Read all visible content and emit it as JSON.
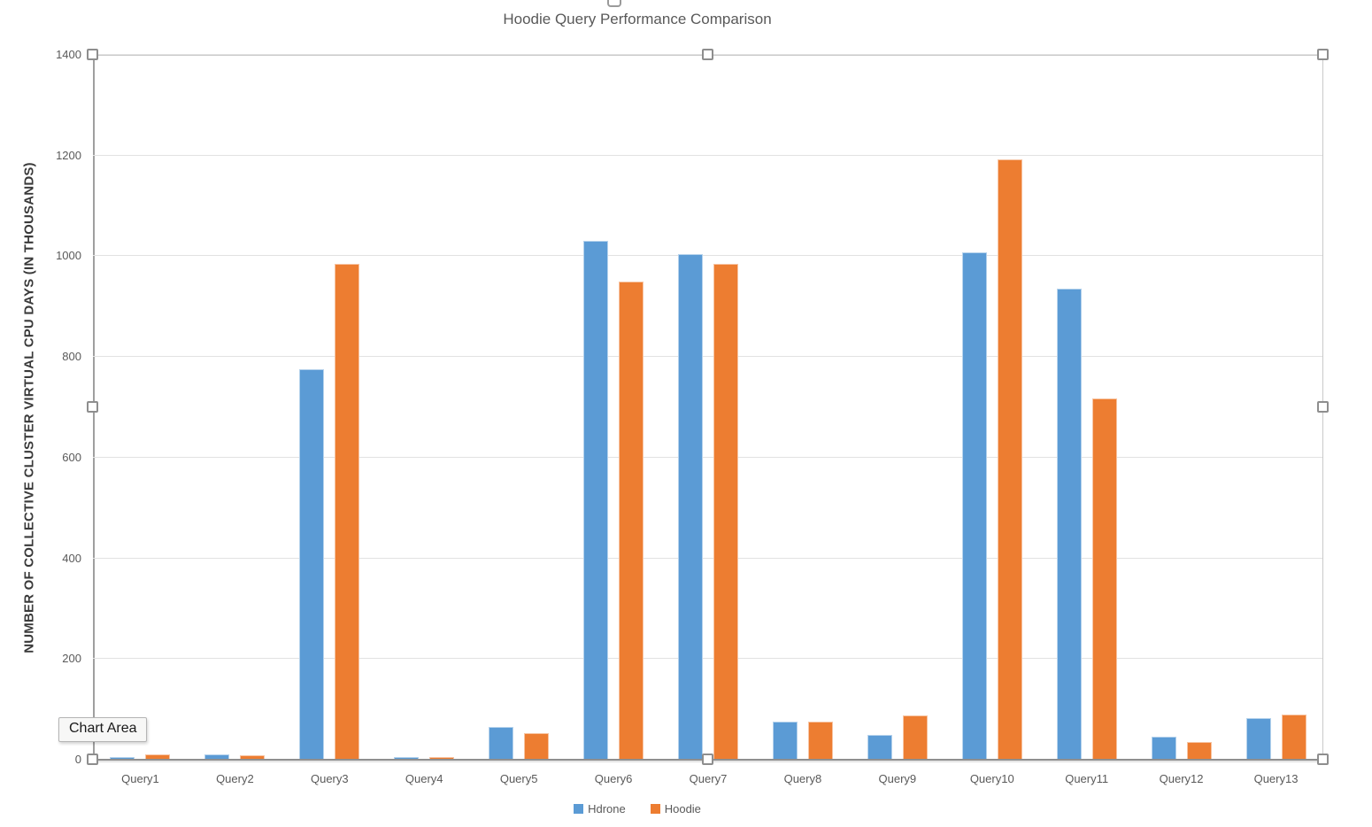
{
  "chart_title": "Hoodie Query Performance Comparison",
  "tooltip": {
    "text": "Chart Area"
  },
  "chart_data": {
    "type": "bar",
    "title": "Hoodie Query Performance Comparison",
    "xlabel": "",
    "ylabel": "NUMBER OF COLLECTIVE CLUSTER VIRTUAL CPU DAYS (IN THOUSANDS)",
    "categories": [
      "Query1",
      "Query2",
      "Query3",
      "Query4",
      "Query5",
      "Query6",
      "Query7",
      "Query8",
      "Query9",
      "Query10",
      "Query11",
      "Query12",
      "Query13"
    ],
    "series": [
      {
        "name": "Hdrone",
        "color": "#5B9BD5",
        "values": [
          5,
          10,
          775,
          5,
          65,
          1030,
          1005,
          76,
          50,
          1007,
          935,
          45,
          82
        ]
      },
      {
        "name": "Hoodie",
        "color": "#ED7D31",
        "values": [
          10,
          9,
          985,
          5,
          52,
          950,
          985,
          75,
          88,
          1193,
          718,
          35,
          90
        ]
      }
    ],
    "ylim": [
      0,
      1400
    ],
    "ytick_step": 200,
    "grid": true,
    "legend_position": "bottom",
    "colors": {
      "hdrone": "#5B9BD5",
      "hoodie": "#ED7D31",
      "text": "#595959",
      "gridline": "#E2E2E2"
    }
  }
}
